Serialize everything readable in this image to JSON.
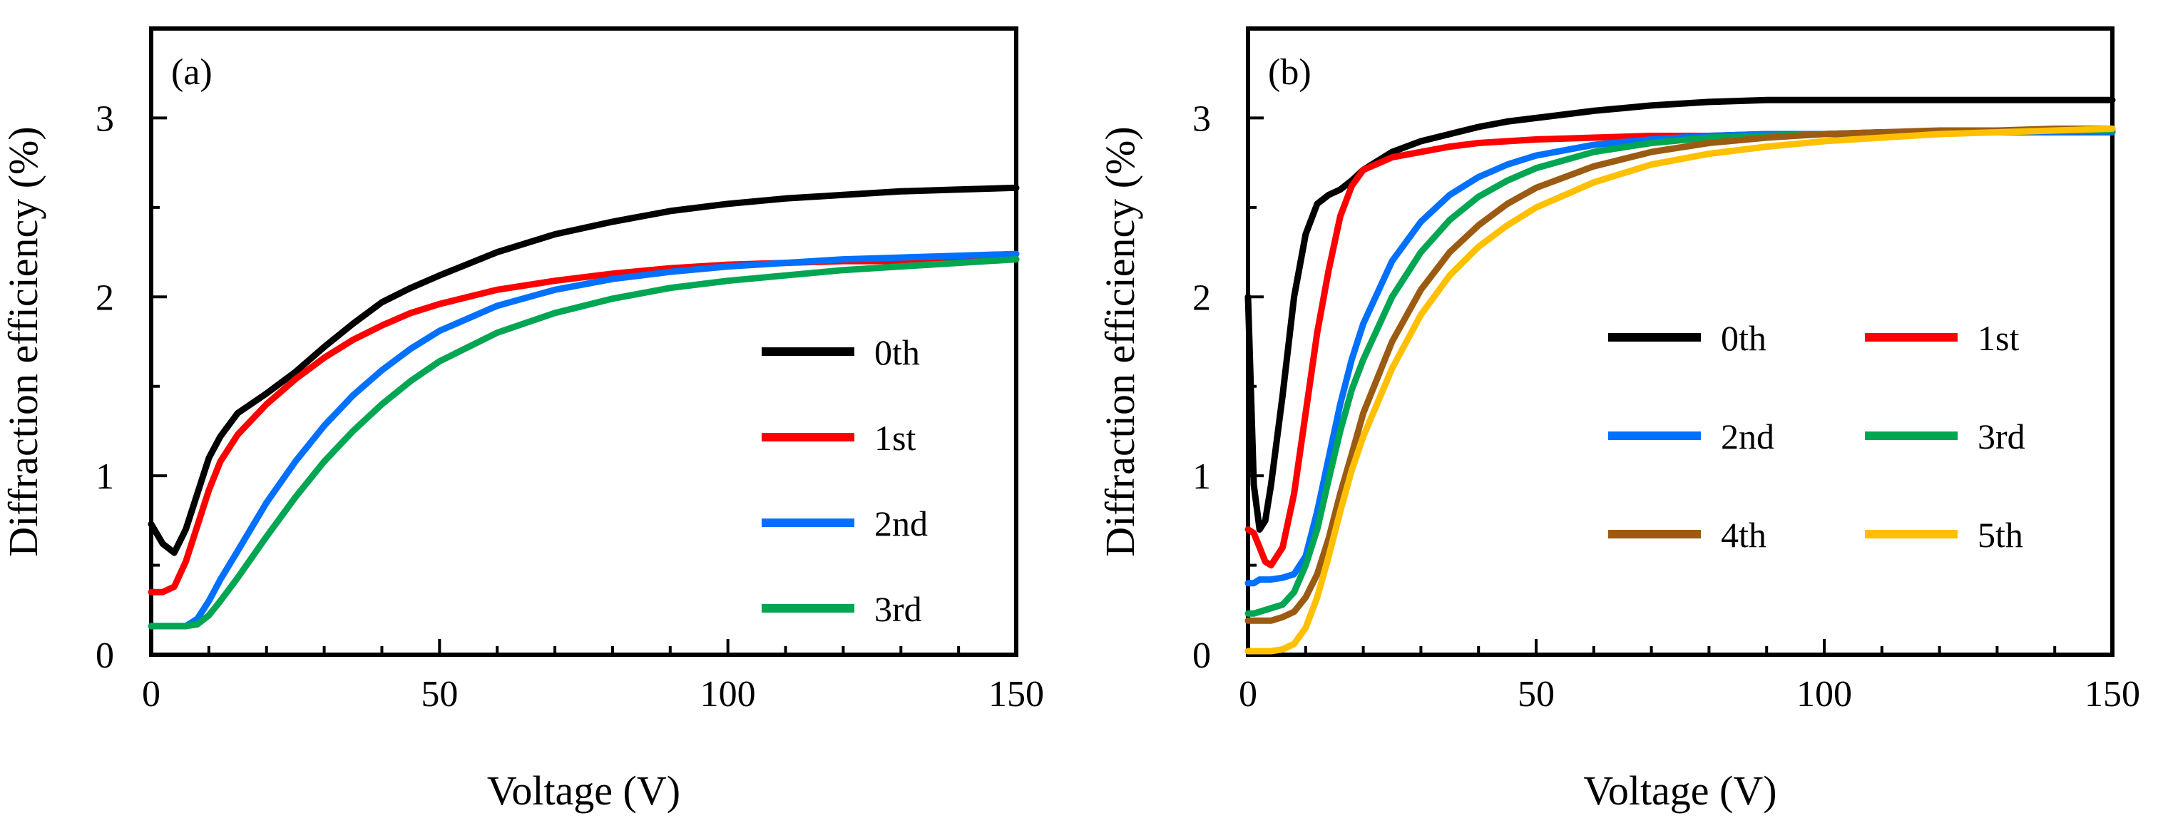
{
  "chart_data": [
    {
      "type": "line",
      "panel_label": "(a)",
      "xlabel": "Voltage (V)",
      "ylabel": "Diffraction efficiency (%)",
      "xlim": [
        0,
        150
      ],
      "ylim": [
        0,
        3.5
      ],
      "xticks": [
        0,
        50,
        100,
        150
      ],
      "yticks": [
        0,
        1,
        2,
        3
      ],
      "x_minor_step": 10,
      "y_minor_step": 0.5,
      "grid": false,
      "legend_placement": "right-middle",
      "legend_columns": 1,
      "x": [
        0,
        2,
        4,
        6,
        8,
        10,
        12,
        15,
        20,
        25,
        30,
        35,
        40,
        45,
        50,
        60,
        70,
        80,
        90,
        100,
        110,
        120,
        130,
        140,
        150
      ],
      "series": [
        {
          "name": "0th",
          "color": "#000000",
          "values": [
            0.73,
            0.62,
            0.57,
            0.7,
            0.9,
            1.1,
            1.22,
            1.35,
            1.46,
            1.58,
            1.72,
            1.85,
            1.97,
            2.05,
            2.12,
            2.25,
            2.35,
            2.42,
            2.48,
            2.52,
            2.55,
            2.57,
            2.59,
            2.6,
            2.61
          ]
        },
        {
          "name": "1st",
          "color": "#ff0000",
          "values": [
            0.35,
            0.35,
            0.38,
            0.52,
            0.72,
            0.92,
            1.08,
            1.23,
            1.4,
            1.54,
            1.66,
            1.76,
            1.84,
            1.91,
            1.96,
            2.04,
            2.09,
            2.13,
            2.16,
            2.18,
            2.19,
            2.2,
            2.2,
            2.21,
            2.21
          ]
        },
        {
          "name": "2nd",
          "color": "#0070ff",
          "values": [
            0.16,
            0.16,
            0.16,
            0.16,
            0.2,
            0.3,
            0.42,
            0.58,
            0.85,
            1.08,
            1.28,
            1.45,
            1.59,
            1.71,
            1.81,
            1.95,
            2.04,
            2.1,
            2.14,
            2.17,
            2.19,
            2.21,
            2.22,
            2.23,
            2.24
          ]
        },
        {
          "name": "3rd",
          "color": "#00a651",
          "values": [
            0.16,
            0.16,
            0.16,
            0.16,
            0.17,
            0.22,
            0.3,
            0.43,
            0.66,
            0.88,
            1.08,
            1.25,
            1.4,
            1.53,
            1.64,
            1.8,
            1.91,
            1.99,
            2.05,
            2.09,
            2.12,
            2.15,
            2.17,
            2.19,
            2.21
          ]
        }
      ]
    },
    {
      "type": "line",
      "panel_label": "(b)",
      "xlabel": "Voltage (V)",
      "ylabel": "Diffraction efficiency (%)",
      "xlim": [
        0,
        150
      ],
      "ylim": [
        0,
        3.5
      ],
      "xticks": [
        0,
        50,
        100,
        150
      ],
      "yticks": [
        0,
        1,
        2,
        3
      ],
      "x_minor_step": 10,
      "y_minor_step": 0.5,
      "grid": false,
      "legend_placement": "right-middle",
      "legend_columns": 2,
      "x": [
        0,
        1,
        2,
        3,
        4,
        6,
        8,
        10,
        12,
        14,
        16,
        18,
        20,
        25,
        30,
        35,
        40,
        45,
        50,
        60,
        70,
        80,
        90,
        100,
        110,
        120,
        130,
        140,
        150
      ],
      "series": [
        {
          "name": "0th",
          "color": "#000000",
          "values": [
            2.0,
            0.95,
            0.7,
            0.75,
            0.95,
            1.45,
            2.0,
            2.35,
            2.52,
            2.57,
            2.6,
            2.65,
            2.71,
            2.81,
            2.87,
            2.91,
            2.95,
            2.98,
            3.0,
            3.04,
            3.07,
            3.09,
            3.1,
            3.1,
            3.1,
            3.1,
            3.1,
            3.1,
            3.1
          ]
        },
        {
          "name": "1st",
          "color": "#ff0000",
          "values": [
            0.7,
            0.68,
            0.6,
            0.52,
            0.5,
            0.6,
            0.9,
            1.35,
            1.8,
            2.15,
            2.45,
            2.62,
            2.71,
            2.78,
            2.81,
            2.84,
            2.86,
            2.87,
            2.88,
            2.89,
            2.9,
            2.9,
            2.91,
            2.91,
            2.91,
            2.92,
            2.92,
            2.92,
            2.92
          ]
        },
        {
          "name": "2nd",
          "color": "#0070ff",
          "values": [
            0.4,
            0.4,
            0.42,
            0.42,
            0.42,
            0.43,
            0.45,
            0.55,
            0.8,
            1.1,
            1.4,
            1.65,
            1.85,
            2.2,
            2.42,
            2.57,
            2.67,
            2.74,
            2.79,
            2.85,
            2.88,
            2.9,
            2.91,
            2.91,
            2.92,
            2.92,
            2.92,
            2.92,
            2.92
          ]
        },
        {
          "name": "3rd",
          "color": "#00a651",
          "values": [
            0.23,
            0.23,
            0.24,
            0.25,
            0.26,
            0.28,
            0.35,
            0.5,
            0.7,
            0.98,
            1.25,
            1.48,
            1.65,
            2.0,
            2.25,
            2.43,
            2.56,
            2.65,
            2.72,
            2.81,
            2.86,
            2.89,
            2.9,
            2.91,
            2.92,
            2.92,
            2.92,
            2.93,
            2.93
          ]
        },
        {
          "name": "4th",
          "color": "#9c5b12",
          "values": [
            0.19,
            0.19,
            0.19,
            0.19,
            0.19,
            0.21,
            0.24,
            0.32,
            0.45,
            0.65,
            0.9,
            1.12,
            1.35,
            1.75,
            2.04,
            2.25,
            2.4,
            2.52,
            2.61,
            2.73,
            2.81,
            2.86,
            2.89,
            2.91,
            2.92,
            2.93,
            2.93,
            2.94,
            2.94
          ]
        },
        {
          "name": "5th",
          "color": "#ffc000",
          "values": [
            0.02,
            0.02,
            0.02,
            0.02,
            0.02,
            0.03,
            0.06,
            0.15,
            0.32,
            0.55,
            0.8,
            1.03,
            1.22,
            1.6,
            1.9,
            2.12,
            2.28,
            2.4,
            2.5,
            2.64,
            2.74,
            2.8,
            2.84,
            2.87,
            2.89,
            2.91,
            2.92,
            2.93,
            2.94
          ]
        }
      ]
    }
  ]
}
